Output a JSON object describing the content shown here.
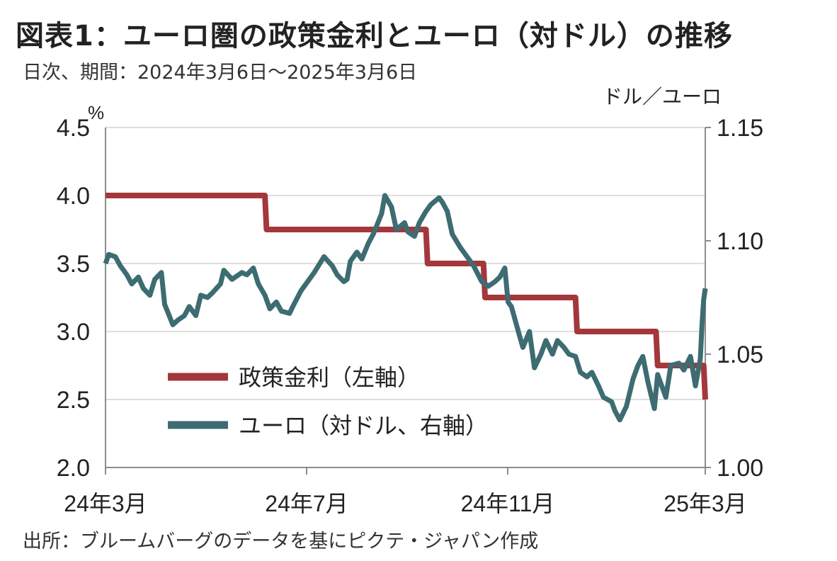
{
  "title": "図表1：ユーロ圏の政策金利とユーロ（対ドル）の推移",
  "subtitle": "日次、期間：2024年3月6日～2025年3月6日",
  "source": "出所：ブルームバーグのデータを基にピクテ・ジャパン作成",
  "chart_data": {
    "type": "line",
    "left_axis": {
      "unit": "%",
      "ylim": [
        2.0,
        4.5
      ],
      "ticks": [
        "2.0",
        "2.5",
        "3.0",
        "3.5",
        "4.0",
        "4.5"
      ]
    },
    "right_axis": {
      "unit": "ドル／ユーロ",
      "ylim": [
        1.0,
        1.15
      ],
      "ticks": [
        "1.00",
        "1.05",
        "1.10",
        "1.15"
      ]
    },
    "x_ticks": [
      "24年3月",
      "24年7月",
      "24年11月",
      "25年3月"
    ],
    "grid": true,
    "legend": "bottom-left",
    "series": [
      {
        "name": "政策金利（左軸）",
        "axis": "left",
        "color": "#a3373c",
        "points": [
          [
            "2024-03-06",
            4.0
          ],
          [
            "2024-06-11",
            4.0
          ],
          [
            "2024-06-12",
            3.75
          ],
          [
            "2024-09-17",
            3.75
          ],
          [
            "2024-09-18",
            3.5
          ],
          [
            "2024-10-22",
            3.5
          ],
          [
            "2024-10-23",
            3.25
          ],
          [
            "2024-12-17",
            3.25
          ],
          [
            "2024-12-18",
            3.0
          ],
          [
            "2025-02-04",
            3.0
          ],
          [
            "2025-02-05",
            2.75
          ],
          [
            "2025-03-05",
            2.75
          ],
          [
            "2025-03-06",
            2.5
          ]
        ]
      },
      {
        "name": "ユーロ（対ドル、右軸）",
        "axis": "right",
        "color": "#3d6c72",
        "points": [
          [
            "2024-03-06",
            1.09
          ],
          [
            "2024-03-08",
            1.094
          ],
          [
            "2024-03-12",
            1.093
          ],
          [
            "2024-03-15",
            1.089
          ],
          [
            "2024-03-19",
            1.085
          ],
          [
            "2024-03-22",
            1.081
          ],
          [
            "2024-03-26",
            1.084
          ],
          [
            "2024-03-29",
            1.079
          ],
          [
            "2024-04-02",
            1.076
          ],
          [
            "2024-04-05",
            1.083
          ],
          [
            "2024-04-09",
            1.086
          ],
          [
            "2024-04-11",
            1.072
          ],
          [
            "2024-04-16",
            1.063
          ],
          [
            "2024-04-19",
            1.065
          ],
          [
            "2024-04-23",
            1.067
          ],
          [
            "2024-04-26",
            1.071
          ],
          [
            "2024-04-30",
            1.067
          ],
          [
            "2024-05-03",
            1.076
          ],
          [
            "2024-05-07",
            1.075
          ],
          [
            "2024-05-10",
            1.077
          ],
          [
            "2024-05-15",
            1.081
          ],
          [
            "2024-05-17",
            1.087
          ],
          [
            "2024-05-22",
            1.083
          ],
          [
            "2024-05-28",
            1.086
          ],
          [
            "2024-05-31",
            1.085
          ],
          [
            "2024-06-04",
            1.088
          ],
          [
            "2024-06-07",
            1.081
          ],
          [
            "2024-06-11",
            1.076
          ],
          [
            "2024-06-14",
            1.07
          ],
          [
            "2024-06-18",
            1.073
          ],
          [
            "2024-06-21",
            1.069
          ],
          [
            "2024-06-26",
            1.068
          ],
          [
            "2024-06-28",
            1.071
          ],
          [
            "2024-07-03",
            1.078
          ],
          [
            "2024-07-08",
            1.083
          ],
          [
            "2024-07-11",
            1.086
          ],
          [
            "2024-07-17",
            1.093
          ],
          [
            "2024-07-22",
            1.089
          ],
          [
            "2024-07-25",
            1.085
          ],
          [
            "2024-07-29",
            1.082
          ],
          [
            "2024-07-31",
            1.083
          ],
          [
            "2024-08-02",
            1.091
          ],
          [
            "2024-08-06",
            1.095
          ],
          [
            "2024-08-09",
            1.092
          ],
          [
            "2024-08-13",
            1.099
          ],
          [
            "2024-08-16",
            1.103
          ],
          [
            "2024-08-21",
            1.112
          ],
          [
            "2024-08-23",
            1.12
          ],
          [
            "2024-08-27",
            1.115
          ],
          [
            "2024-08-30",
            1.105
          ],
          [
            "2024-09-04",
            1.108
          ],
          [
            "2024-09-06",
            1.104
          ],
          [
            "2024-09-10",
            1.102
          ],
          [
            "2024-09-13",
            1.108
          ],
          [
            "2024-09-17",
            1.113
          ],
          [
            "2024-09-20",
            1.116
          ],
          [
            "2024-09-25",
            1.119
          ],
          [
            "2024-09-27",
            1.117
          ],
          [
            "2024-09-30",
            1.113
          ],
          [
            "2024-10-03",
            1.103
          ],
          [
            "2024-10-08",
            1.097
          ],
          [
            "2024-10-11",
            1.094
          ],
          [
            "2024-10-16",
            1.089
          ],
          [
            "2024-10-21",
            1.082
          ],
          [
            "2024-10-25",
            1.08
          ],
          [
            "2024-10-29",
            1.082
          ],
          [
            "2024-11-01",
            1.084
          ],
          [
            "2024-11-04",
            1.088
          ],
          [
            "2024-11-06",
            1.073
          ],
          [
            "2024-11-08",
            1.071
          ],
          [
            "2024-11-13",
            1.058
          ],
          [
            "2024-11-15",
            1.053
          ],
          [
            "2024-11-19",
            1.06
          ],
          [
            "2024-11-22",
            1.044
          ],
          [
            "2024-11-26",
            1.05
          ],
          [
            "2024-11-29",
            1.056
          ],
          [
            "2024-12-03",
            1.05
          ],
          [
            "2024-12-06",
            1.056
          ],
          [
            "2024-12-10",
            1.053
          ],
          [
            "2024-12-13",
            1.05
          ],
          [
            "2024-12-17",
            1.049
          ],
          [
            "2024-12-20",
            1.042
          ],
          [
            "2024-12-24",
            1.04
          ],
          [
            "2024-12-27",
            1.042
          ],
          [
            "2024-12-31",
            1.036
          ],
          [
            "2025-01-03",
            1.031
          ],
          [
            "2025-01-08",
            1.029
          ],
          [
            "2025-01-10",
            1.025
          ],
          [
            "2025-01-13",
            1.021
          ],
          [
            "2025-01-17",
            1.027
          ],
          [
            "2025-01-21",
            1.039
          ],
          [
            "2025-01-24",
            1.045
          ],
          [
            "2025-01-27",
            1.049
          ],
          [
            "2025-01-30",
            1.038
          ],
          [
            "2025-02-03",
            1.026
          ],
          [
            "2025-02-05",
            1.041
          ],
          [
            "2025-02-10",
            1.031
          ],
          [
            "2025-02-13",
            1.045
          ],
          [
            "2025-02-18",
            1.046
          ],
          [
            "2025-02-21",
            1.043
          ],
          [
            "2025-02-25",
            1.049
          ],
          [
            "2025-02-28",
            1.036
          ],
          [
            "2025-03-03",
            1.048
          ],
          [
            "2025-03-04",
            1.063
          ],
          [
            "2025-03-05",
            1.074
          ],
          [
            "2025-03-06",
            1.079
          ]
        ]
      }
    ]
  }
}
